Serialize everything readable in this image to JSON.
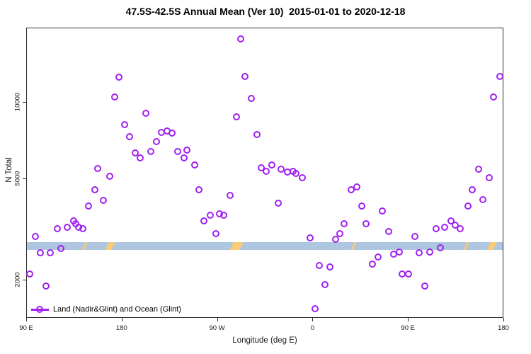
{
  "title": "47.5S-42.5S Annual Mean (Ver 10)  2015-01-01 to 2020-12-18",
  "chart_data": {
    "type": "scatter",
    "title": "47.5S-42.5S Annual Mean (Ver 10)  2015-01-01 to 2020-12-18",
    "xlabel": "Longitude (deg E)",
    "ylabel": "N Total",
    "y_scale": "log",
    "ylim": [
      1420,
      19500
    ],
    "y_ticks": [
      2000,
      5000,
      10000
    ],
    "xlim": [
      90,
      540
    ],
    "x_ticks": [
      {
        "lon": 90,
        "label": "90 E"
      },
      {
        "lon": 180,
        "label": "180"
      },
      {
        "lon": 270,
        "label": "90 W"
      },
      {
        "lon": 360,
        "label": "0"
      },
      {
        "lon": 450,
        "label": "90 E"
      },
      {
        "lon": 540,
        "label": "180"
      }
    ],
    "grid": false,
    "legend": {
      "label": "Land (Nadir&Glint) and Ocean (Glint)",
      "position": "bottom-left"
    },
    "marker": {
      "shape": "open-circle",
      "color": "#A020F0"
    },
    "band": {
      "color": "#AFC6E1",
      "value_low": 2620,
      "value_high": 2820
    },
    "gap_marks": {
      "color": "#F8CC76",
      "items": [
        {
          "lon": 145,
          "width": 3
        },
        {
          "lon": 169,
          "width": 9
        },
        {
          "lon": 288,
          "width": 14
        },
        {
          "lon": 399,
          "width": 3
        },
        {
          "lon": 505,
          "width": 3
        },
        {
          "lon": 529,
          "width": 9
        }
      ]
    },
    "points": [
      [
        94,
        2100
      ],
      [
        99,
        2950
      ],
      [
        104,
        2550
      ],
      [
        109,
        1880
      ],
      [
        113,
        2550
      ],
      [
        120,
        3170
      ],
      [
        123,
        2650
      ],
      [
        129,
        3210
      ],
      [
        135,
        3400
      ],
      [
        137,
        3310
      ],
      [
        140,
        3210
      ],
      [
        144,
        3170
      ],
      [
        149,
        3880
      ],
      [
        155,
        4500
      ],
      [
        158,
        5450
      ],
      [
        163,
        4090
      ],
      [
        169,
        5080
      ],
      [
        174,
        10400
      ],
      [
        178,
        12400
      ],
      [
        183,
        8090
      ],
      [
        188,
        7260
      ],
      [
        193,
        6270
      ],
      [
        198,
        5990
      ],
      [
        203,
        8970
      ],
      [
        208,
        6360
      ],
      [
        213,
        6950
      ],
      [
        218,
        7550
      ],
      [
        223,
        7640
      ],
      [
        228,
        7500
      ],
      [
        233,
        6360
      ],
      [
        239,
        5990
      ],
      [
        242,
        6440
      ],
      [
        249,
        5620
      ],
      [
        253,
        4500
      ],
      [
        258,
        3400
      ],
      [
        264,
        3570
      ],
      [
        269,
        3030
      ],
      [
        273,
        3620
      ],
      [
        277,
        3570
      ],
      [
        283,
        4280
      ],
      [
        289,
        8690
      ],
      [
        293,
        17500
      ],
      [
        297,
        12500
      ],
      [
        303,
        10260
      ],
      [
        308,
        7410
      ],
      [
        312,
        5480
      ],
      [
        317,
        5310
      ],
      [
        322,
        5620
      ],
      [
        328,
        3980
      ],
      [
        331,
        5420
      ],
      [
        337,
        5280
      ],
      [
        342,
        5310
      ],
      [
        345,
        5210
      ],
      [
        351,
        5010
      ],
      [
        358,
        2920
      ],
      [
        363,
        1540
      ],
      [
        367,
        2270
      ],
      [
        372,
        1910
      ],
      [
        377,
        2240
      ],
      [
        382,
        2880
      ],
      [
        386,
        3030
      ],
      [
        390,
        3310
      ],
      [
        397,
        4500
      ],
      [
        402,
        4620
      ],
      [
        407,
        3880
      ],
      [
        411,
        3310
      ],
      [
        417,
        2300
      ],
      [
        422,
        2450
      ],
      [
        426,
        3720
      ],
      [
        432,
        3090
      ],
      [
        437,
        2520
      ],
      [
        442,
        2570
      ],
      [
        445,
        2100
      ],
      [
        451,
        2100
      ],
      [
        457,
        2950
      ],
      [
        461,
        2540
      ],
      [
        466,
        1880
      ],
      [
        471,
        2570
      ],
      [
        477,
        3170
      ],
      [
        481,
        2660
      ],
      [
        485,
        3210
      ],
      [
        491,
        3400
      ],
      [
        495,
        3260
      ],
      [
        500,
        3170
      ],
      [
        507,
        3880
      ],
      [
        511,
        4500
      ],
      [
        517,
        5420
      ],
      [
        521,
        4110
      ],
      [
        527,
        5010
      ],
      [
        531,
        10400
      ],
      [
        537,
        12500
      ]
    ]
  }
}
